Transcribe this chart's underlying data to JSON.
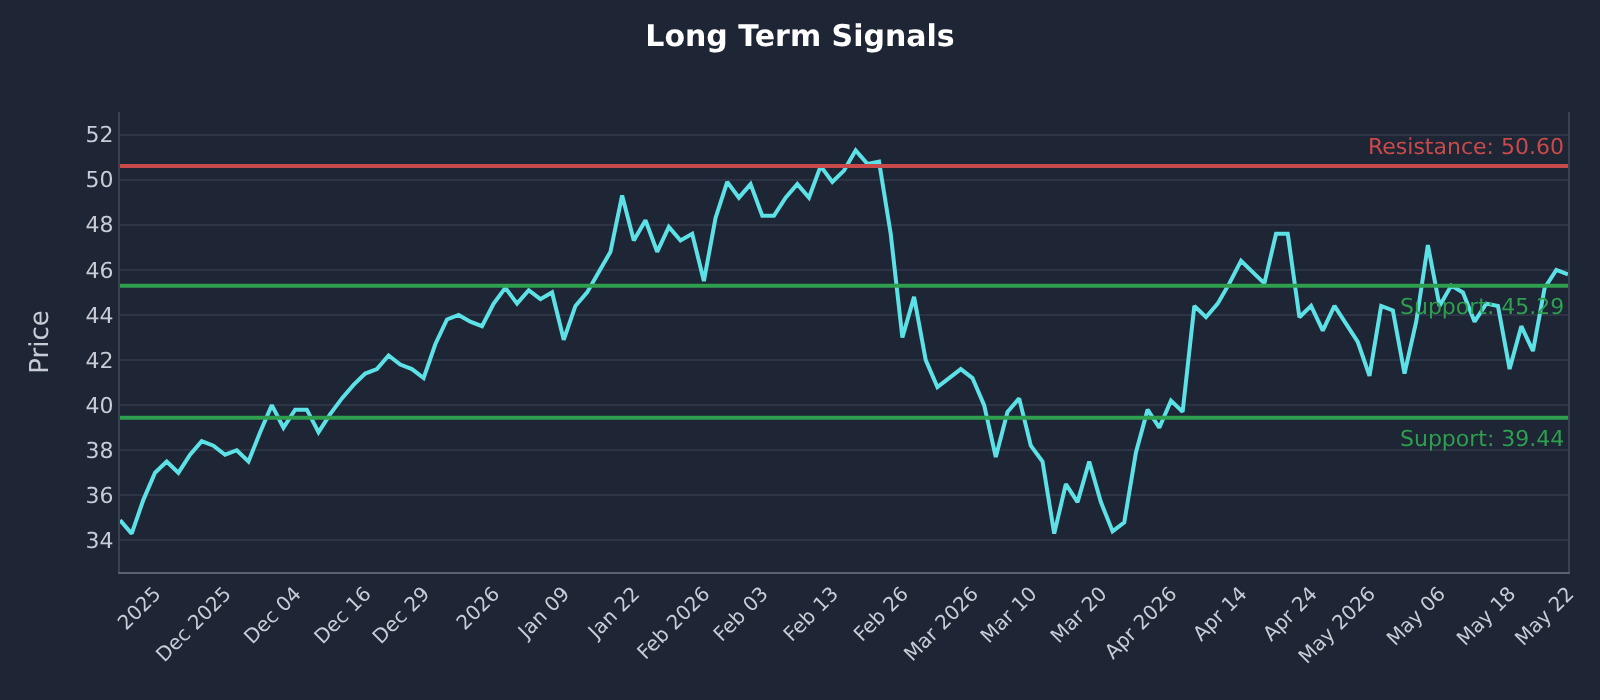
{
  "chart_data": {
    "type": "line",
    "title": "Long Term Signals",
    "ylabel": "Price",
    "categories": [
      null,
      null,
      null,
      "2025",
      null,
      null,
      null,
      null,
      null,
      "Dec 2025",
      null,
      null,
      null,
      null,
      null,
      "Dec 04",
      null,
      null,
      null,
      null,
      null,
      "Dec 16",
      null,
      null,
      null,
      null,
      "Dec 29",
      null,
      null,
      null,
      null,
      null,
      "2026",
      null,
      null,
      null,
      null,
      null,
      "Jan 09",
      null,
      null,
      null,
      null,
      null,
      "Jan 22",
      null,
      null,
      null,
      null,
      null,
      "Feb 2026",
      null,
      null,
      null,
      null,
      "Feb 03",
      null,
      null,
      null,
      null,
      null,
      "Feb 13",
      null,
      null,
      null,
      null,
      null,
      "Feb 26",
      null,
      null,
      null,
      null,
      null,
      "Mar 2026",
      null,
      null,
      null,
      null,
      "Mar 10",
      null,
      null,
      null,
      null,
      null,
      "Mar 20",
      null,
      null,
      null,
      null,
      null,
      "Apr 2026",
      null,
      null,
      null,
      null,
      null,
      "Apr 14",
      null,
      null,
      null,
      null,
      null,
      "Apr 24",
      null,
      null,
      null,
      null,
      "May 2026",
      null,
      null,
      null,
      null,
      null,
      "May 06",
      null,
      null,
      null,
      null,
      null,
      "May 18",
      null,
      null,
      null,
      null,
      "May 22"
    ],
    "series": [
      {
        "color": "#5ce1e6",
        "values": [
          34.9,
          34.3,
          35.8,
          37.0,
          37.5,
          37.0,
          37.8,
          38.4,
          38.2,
          37.8,
          38.0,
          37.5,
          38.8,
          40.0,
          39.0,
          39.8,
          39.8,
          38.8,
          39.6,
          40.3,
          40.9,
          41.4,
          41.6,
          42.2,
          41.8,
          41.6,
          41.2,
          42.7,
          43.8,
          44.0,
          43.7,
          43.5,
          44.5,
          45.2,
          44.5,
          45.1,
          44.7,
          45.0,
          42.9,
          44.4,
          45.0,
          45.9,
          46.8,
          49.3,
          47.3,
          48.2,
          46.8,
          47.9,
          47.3,
          47.6,
          45.5,
          48.3,
          49.9,
          49.2,
          49.8,
          48.4,
          48.4,
          49.2,
          49.8,
          49.2,
          50.6,
          49.9,
          50.4,
          51.3,
          50.7,
          50.8,
          47.6,
          43.0,
          44.8,
          42.0,
          40.8,
          41.2,
          41.6,
          41.2,
          40.0,
          37.7,
          39.7,
          40.3,
          38.2,
          37.5,
          34.3,
          36.5,
          35.7,
          37.5,
          35.7,
          34.4,
          34.8,
          37.9,
          39.8,
          39.0,
          40.2,
          39.7,
          44.4,
          43.9,
          44.5,
          45.4,
          46.4,
          45.9,
          45.4,
          47.6,
          47.6,
          43.9,
          44.4,
          43.3,
          44.4,
          43.6,
          42.8,
          41.3,
          44.4,
          44.2,
          41.4,
          43.7,
          47.1,
          44.4,
          45.3,
          45.0,
          43.7,
          44.5,
          44.4,
          41.6,
          43.5,
          42.4,
          45.2,
          46.0,
          45.8
        ]
      }
    ],
    "ylim": [
      32.6,
      53
    ],
    "yticks": [
      34,
      36,
      38,
      40,
      42,
      44,
      46,
      48,
      50,
      52
    ],
    "ref_lines": [
      {
        "axis": "y",
        "value": 50.6,
        "label": "Resistance: 50.60",
        "color": "#c94a4a"
      },
      {
        "axis": "y",
        "value": 45.29,
        "label": "Support: 45.29",
        "color": "#2e9e4f"
      },
      {
        "axis": "y",
        "value": 39.44,
        "label": "Support: 39.44",
        "color": "#2e9e4f"
      }
    ],
    "grid": "y",
    "marker": "none",
    "line_style": "solid"
  }
}
